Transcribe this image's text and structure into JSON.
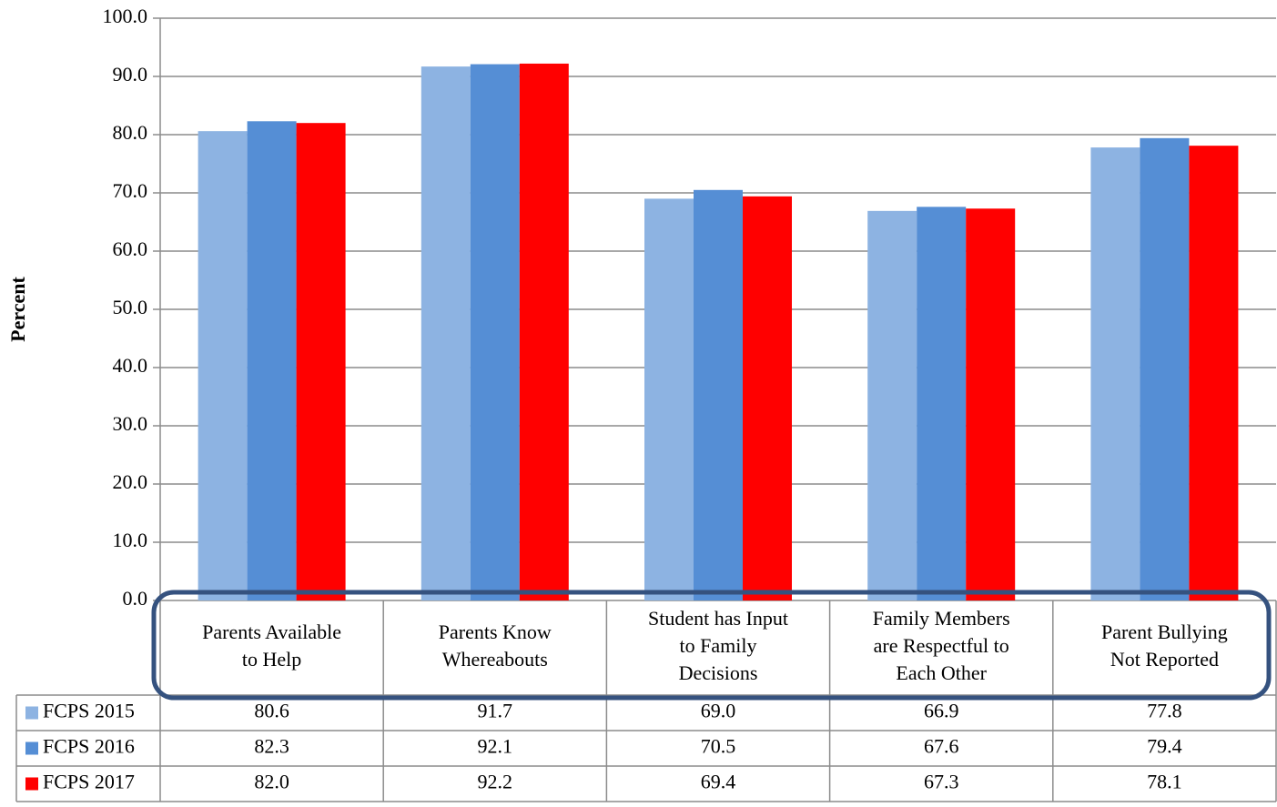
{
  "chart_data": {
    "type": "bar",
    "y_label": "Percent",
    "categories": [
      "Parents Available\nto Help",
      "Parents Know\nWhereabouts",
      "Student has Input\nto Family\nDecisions",
      "Family Members\nare Respectful to\nEach Other",
      "Parent Bullying\nNot Reported"
    ],
    "series": [
      {
        "name": "FCPS 2015",
        "color": "#8db3e2",
        "values": [
          80.6,
          91.7,
          69.0,
          66.9,
          77.8
        ],
        "value_labels": [
          "80.6",
          "91.7",
          "69.0",
          "66.9",
          "77.8"
        ]
      },
      {
        "name": "FCPS 2016",
        "color": "#558ed5",
        "values": [
          82.3,
          92.1,
          70.5,
          67.6,
          79.4
        ],
        "value_labels": [
          "82.3",
          "92.1",
          "70.5",
          "67.6",
          "79.4"
        ]
      },
      {
        "name": "FCPS 2017",
        "color": "#ff0000",
        "values": [
          82.0,
          92.2,
          69.4,
          67.3,
          78.1
        ],
        "value_labels": [
          "82.0",
          "92.2",
          "69.4",
          "67.3",
          "78.1"
        ]
      }
    ],
    "ylim": [
      0,
      100
    ],
    "yticks": [
      {
        "value": 0,
        "label": "0.0"
      },
      {
        "value": 10,
        "label": "10.0"
      },
      {
        "value": 20,
        "label": "20.0"
      },
      {
        "value": 30,
        "label": "30.0"
      },
      {
        "value": 40,
        "label": "40.0"
      },
      {
        "value": 50,
        "label": "50.0"
      },
      {
        "value": 60,
        "label": "60.0"
      },
      {
        "value": 70,
        "label": "70.0"
      },
      {
        "value": 80,
        "label": "80.0"
      },
      {
        "value": 90,
        "label": "90.0"
      },
      {
        "value": 100,
        "label": "100.0"
      }
    ],
    "grid": true
  }
}
